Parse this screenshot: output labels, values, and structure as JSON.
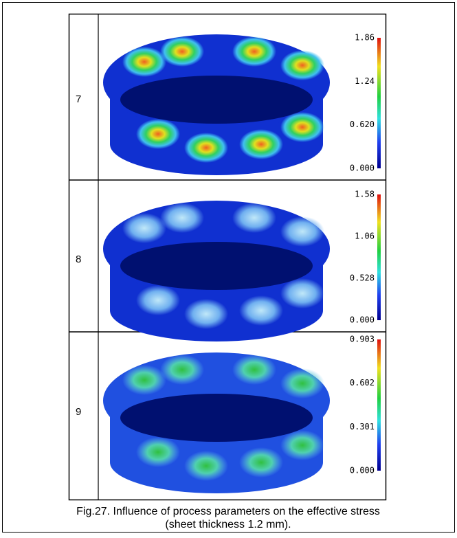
{
  "figure": {
    "rows": [
      {
        "label": "7",
        "scale": [
          "1.86",
          "1.24",
          "0.620",
          "0.000"
        ]
      },
      {
        "label": "8",
        "scale": [
          "1.58",
          "1.06",
          "0.528",
          "0.000"
        ]
      },
      {
        "label": "9",
        "scale": [
          "0.903",
          "0.602",
          "0.301",
          "0.000"
        ]
      }
    ],
    "caption": [
      "Fig.27. Influence of process parameters on the effective stress",
      "(sheet thickness 1.2 mm)."
    ]
  }
}
